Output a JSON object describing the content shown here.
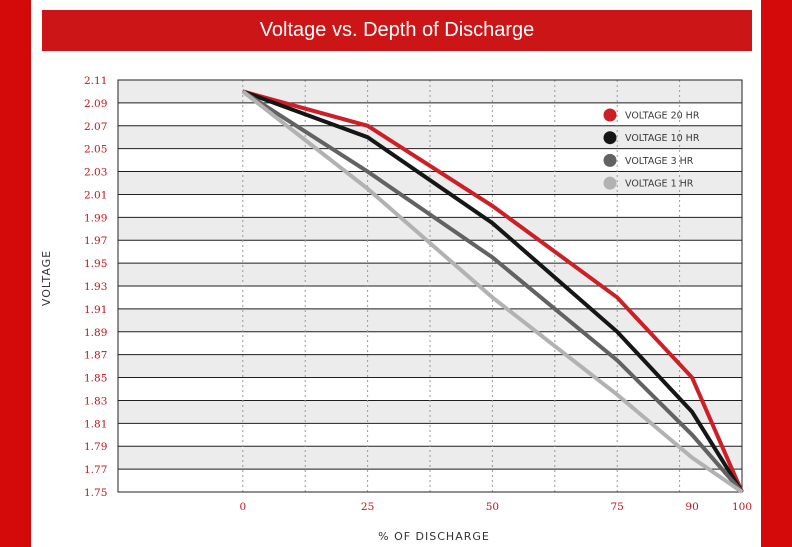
{
  "chart_data": {
    "type": "line",
    "title": "Voltage vs. Depth of Discharge",
    "xlabel": "% OF DISCHARGE",
    "ylabel": "VOLTAGE",
    "x": [
      0,
      25,
      50,
      75,
      90,
      100
    ],
    "xlim": [
      -25,
      100
    ],
    "ylim": [
      1.75,
      2.11
    ],
    "x_ticks": [
      "0",
      "25",
      "50",
      "75",
      "90",
      "100"
    ],
    "y_ticks": [
      "2.11",
      "2.09",
      "2.07",
      "2.05",
      "2.03",
      "2.01",
      "1.99",
      "1.97",
      "1.95",
      "1.93",
      "1.91",
      "1.89",
      "1.87",
      "1.85",
      "1.83",
      "1.81",
      "1.79",
      "1.77",
      "1.75"
    ],
    "grid": true,
    "legend_position": "top-right",
    "series": [
      {
        "name": "VOLTAGE 20 HR",
        "color": "#cc1f26",
        "values": [
          2.1,
          2.07,
          2.0,
          1.92,
          1.85,
          1.75
        ]
      },
      {
        "name": "VOLTAGE 10 HR",
        "color": "#161616",
        "values": [
          2.1,
          2.06,
          1.985,
          1.89,
          1.82,
          1.75
        ]
      },
      {
        "name": "VOLTAGE 3 HR",
        "color": "#626262",
        "values": [
          2.1,
          2.03,
          1.955,
          1.865,
          1.8,
          1.75
        ]
      },
      {
        "name": "VOLTAGE 1 HR",
        "color": "#b2b2b2",
        "values": [
          2.1,
          2.015,
          1.92,
          1.835,
          1.78,
          1.75
        ]
      }
    ]
  }
}
